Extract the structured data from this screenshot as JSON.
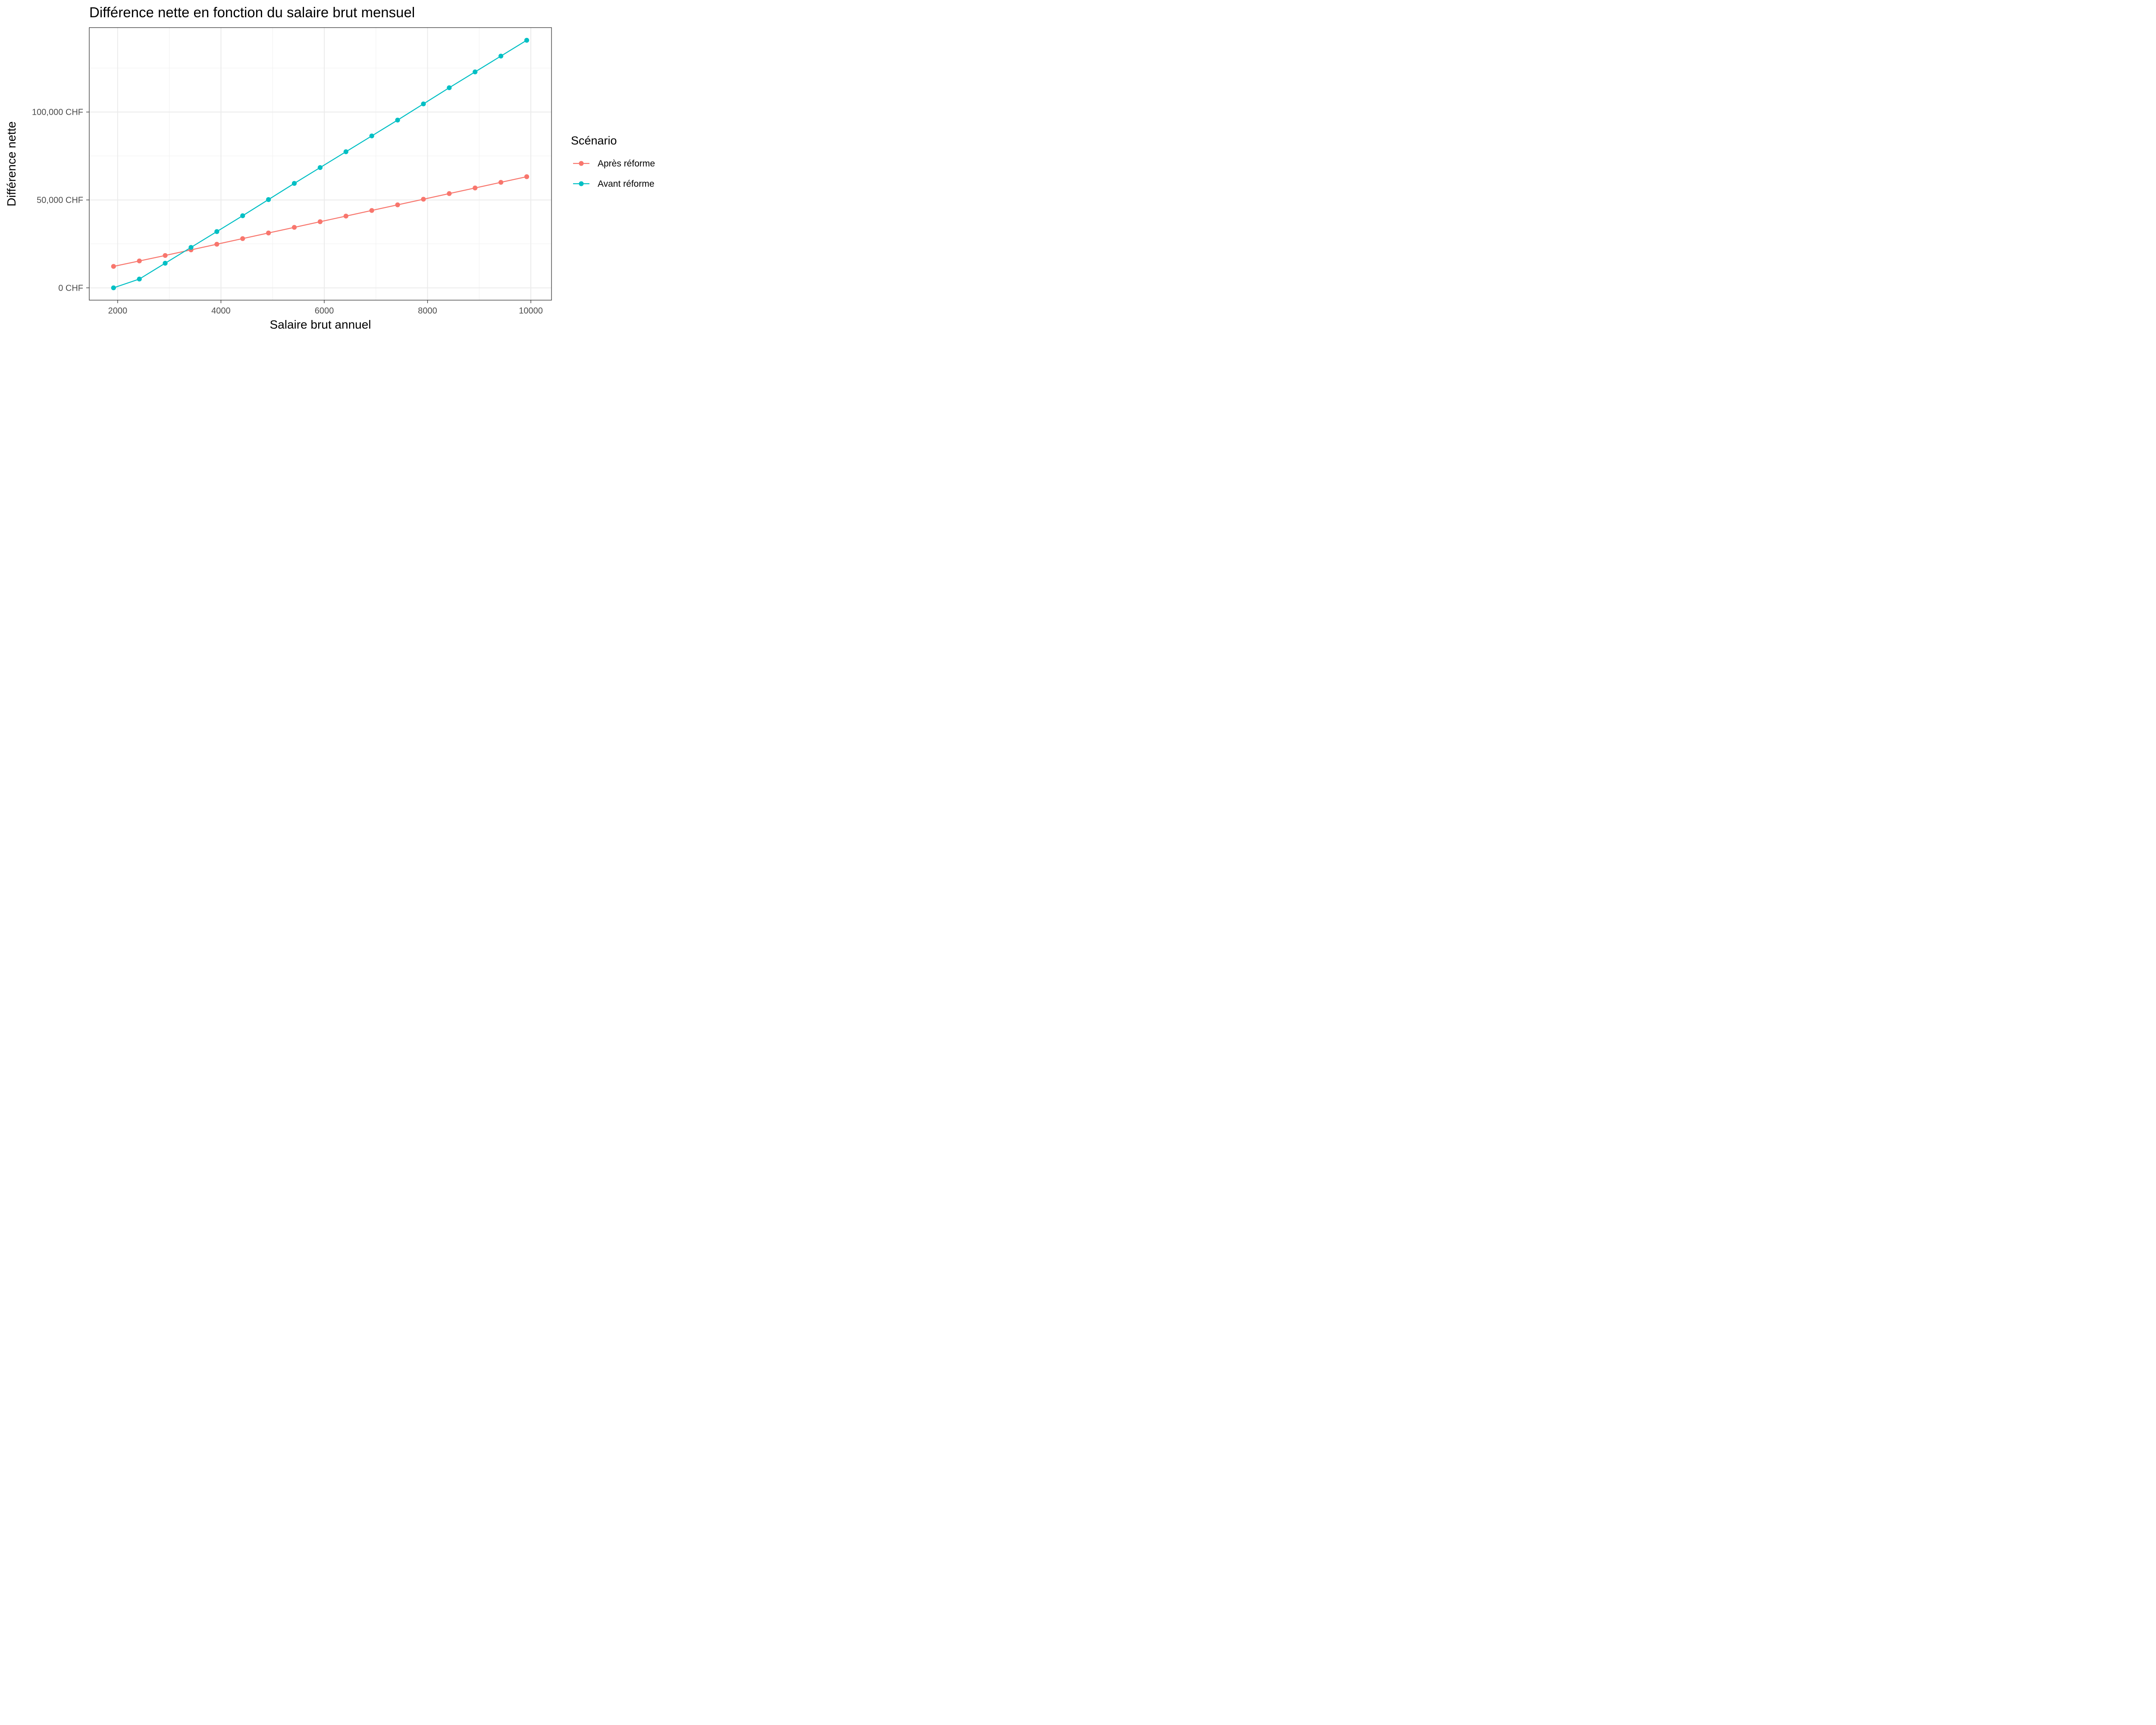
{
  "chart_data": {
    "type": "line",
    "title": "Différence nette en fonction du salaire brut mensuel",
    "xlabel": "Salaire brut annuel",
    "ylabel": "Différence nette",
    "x": [
      1920,
      2420,
      2920,
      3420,
      3920,
      4420,
      4920,
      5420,
      5920,
      6420,
      6920,
      7420,
      7920,
      8420,
      8920,
      9420,
      9920
    ],
    "xlim": [
      1450,
      10400
    ],
    "ylim": [
      -7000,
      148000
    ],
    "xticks": [
      2000,
      4000,
      6000,
      8000,
      10000
    ],
    "xtick_labels": [
      "2000",
      "4000",
      "6000",
      "8000",
      "10000"
    ],
    "yticks": [
      0,
      50000,
      100000
    ],
    "ytick_labels": [
      "0 CHF",
      "50,000 CHF",
      "100,000 CHF"
    ],
    "grid": true,
    "legend": {
      "title": "Scénario",
      "position": "right"
    },
    "series": [
      {
        "name": "Après réforme",
        "color": "#F8766D",
        "values": [
          12200,
          15300,
          18400,
          21600,
          24800,
          28000,
          31200,
          34400,
          37600,
          40800,
          44000,
          47200,
          50400,
          53600,
          56800,
          60000,
          63200
        ]
      },
      {
        "name": "Avant réforme",
        "color": "#00BFC4",
        "values": [
          0,
          5000,
          14000,
          23000,
          32000,
          41000,
          50200,
          59400,
          68400,
          77400,
          86400,
          95400,
          104600,
          113800,
          122800,
          131800,
          140800
        ]
      }
    ]
  }
}
